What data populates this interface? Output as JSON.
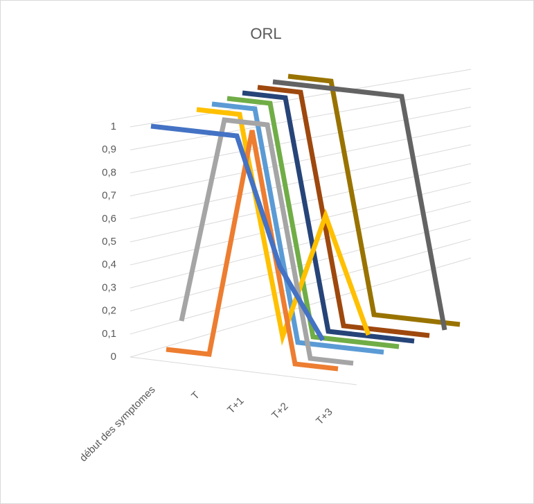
{
  "chart_data": {
    "type": "line3d",
    "title": "ORL",
    "categories": [
      "début des symptomes",
      "T",
      "T+1",
      "T+2",
      "T+3"
    ],
    "ylim": [
      0,
      1
    ],
    "yticks": [
      0,
      {
        "value": 0.1,
        "label": "0,1"
      },
      {
        "value": 0.2,
        "label": "0,2"
      },
      {
        "value": 0.3,
        "label": "0,3"
      },
      {
        "value": 0.4,
        "label": "0,4"
      },
      {
        "value": 0.5,
        "label": "0,5"
      },
      {
        "value": 0.6,
        "label": "0,6"
      },
      {
        "value": 0.7,
        "label": "0,7"
      },
      {
        "value": 0.8,
        "label": "0,8"
      },
      {
        "value": 0.9,
        "label": "0,9"
      },
      1
    ],
    "grid": true,
    "series": [
      {
        "color": "#4472c4",
        "values": [
          1,
          1,
          1,
          0.45,
          0.15
        ]
      },
      {
        "color": "#ed7d31",
        "values": [
          0,
          0,
          1,
          0,
          0
        ]
      },
      {
        "color": "#a5a5a5",
        "values": [
          0.1,
          1,
          1,
          0,
          0
        ]
      },
      {
        "color": "#ffc000",
        "values": [
          1,
          1,
          0.05,
          0.6,
          0.1
        ]
      },
      {
        "color": "#5b9bd5",
        "values": [
          1,
          1,
          0,
          0,
          0
        ]
      },
      {
        "color": "#70ad47",
        "values": [
          1,
          1,
          0,
          0,
          0
        ]
      },
      {
        "color": "#264478",
        "values": [
          1,
          1,
          0,
          0,
          0
        ]
      },
      {
        "color": "#9e480e",
        "values": [
          1,
          1,
          0,
          0,
          0
        ]
      },
      {
        "color": "#636363",
        "values": [
          1,
          1,
          1,
          1,
          0
        ]
      },
      {
        "color": "#997300",
        "values": [
          1,
          1,
          0,
          0,
          0
        ]
      }
    ]
  }
}
